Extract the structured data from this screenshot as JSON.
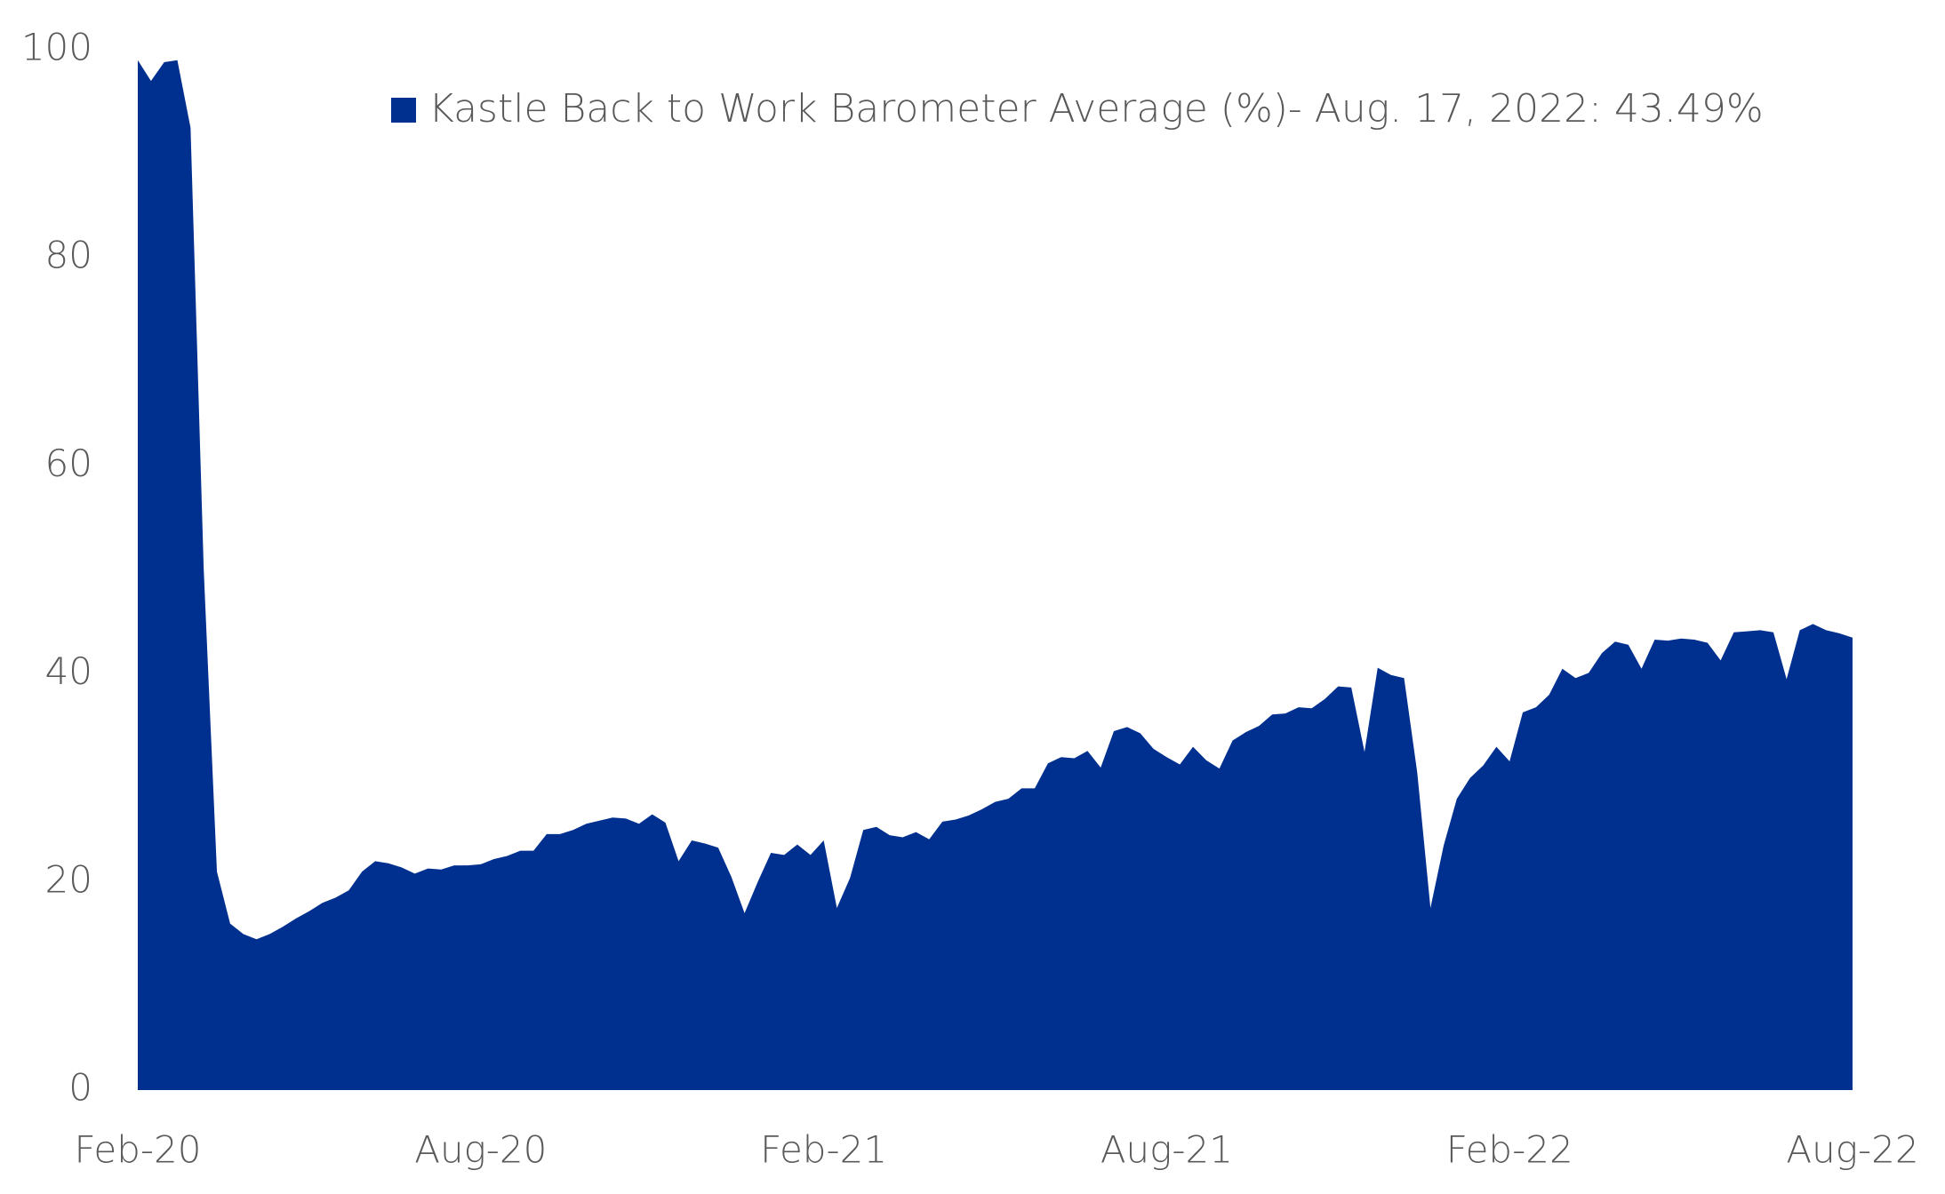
{
  "chart_data": {
    "type": "area",
    "categories": [
      "Feb-20",
      null,
      null,
      null,
      null,
      null,
      null,
      null,
      null,
      null,
      null,
      null,
      null,
      null,
      null,
      null,
      null,
      null,
      null,
      null,
      null,
      null,
      null,
      null,
      null,
      null,
      "Aug-20",
      null,
      null,
      null,
      null,
      null,
      null,
      null,
      null,
      null,
      null,
      null,
      null,
      null,
      null,
      null,
      null,
      null,
      null,
      null,
      null,
      null,
      null,
      null,
      null,
      null,
      "Feb-21",
      null,
      null,
      null,
      null,
      null,
      null,
      null,
      null,
      null,
      null,
      null,
      null,
      null,
      null,
      null,
      null,
      null,
      null,
      null,
      null,
      null,
      null,
      null,
      null,
      null,
      "Aug-21",
      null,
      null,
      null,
      null,
      null,
      null,
      null,
      null,
      null,
      null,
      null,
      null,
      null,
      null,
      null,
      null,
      null,
      null,
      null,
      null,
      null,
      null,
      null,
      null,
      null,
      "Feb-22",
      null,
      null,
      null,
      null,
      null,
      null,
      null,
      null,
      null,
      null,
      null,
      null,
      null,
      null,
      null,
      null,
      null,
      null,
      null,
      null,
      null,
      null,
      null,
      null,
      null,
      "Aug-22"
    ],
    "series": [
      {
        "name": "Kastle Back to Work Barometer Average (%)- Aug. 17, 2022: 43.49%",
        "color": "#00308f",
        "values": [
          99,
          97,
          98.8,
          99,
          92.5,
          50,
          21,
          16,
          15,
          14.5,
          15,
          15.7,
          16.5,
          17.2,
          18,
          18.5,
          19.2,
          21,
          22,
          21.8,
          21.4,
          20.8,
          21.3,
          21.2,
          21.6,
          21.6,
          21.7,
          22.2,
          22.5,
          23,
          23,
          24.6,
          24.6,
          25,
          25.6,
          25.9,
          26.2,
          26.1,
          25.6,
          26.5,
          25.7,
          22,
          24,
          23.7,
          23.3,
          20.5,
          17,
          20,
          22.8,
          22.6,
          23.6,
          22.6,
          24,
          17.5,
          20.4,
          25,
          25.3,
          24.5,
          24.3,
          24.8,
          24.1,
          25.8,
          26,
          26.4,
          27,
          27.7,
          28,
          29,
          29,
          31.4,
          32,
          31.9,
          32.6,
          31,
          34.5,
          34.9,
          34.3,
          32.8,
          32,
          31.3,
          33,
          31.7,
          30.9,
          33.6,
          34.4,
          35,
          36.1,
          36.2,
          36.8,
          36.7,
          37.6,
          38.8,
          38.7,
          32.5,
          40.6,
          39.9,
          39.6,
          30.5,
          17.5,
          23.5,
          28,
          30,
          31.2,
          33,
          31.6,
          36.3,
          36.8,
          38,
          40.5,
          39.6,
          40.1,
          42,
          43.1,
          42.8,
          40.5,
          43.3,
          43.2,
          43.4,
          43.3,
          43,
          41.3,
          44,
          44.1,
          44.2,
          44,
          39.5,
          44.2,
          44.8,
          44.2,
          43.9,
          43.49
        ]
      }
    ],
    "ylim": [
      0,
      100
    ],
    "yticks": [
      0,
      20,
      40,
      60,
      80,
      100
    ],
    "grid": false
  }
}
